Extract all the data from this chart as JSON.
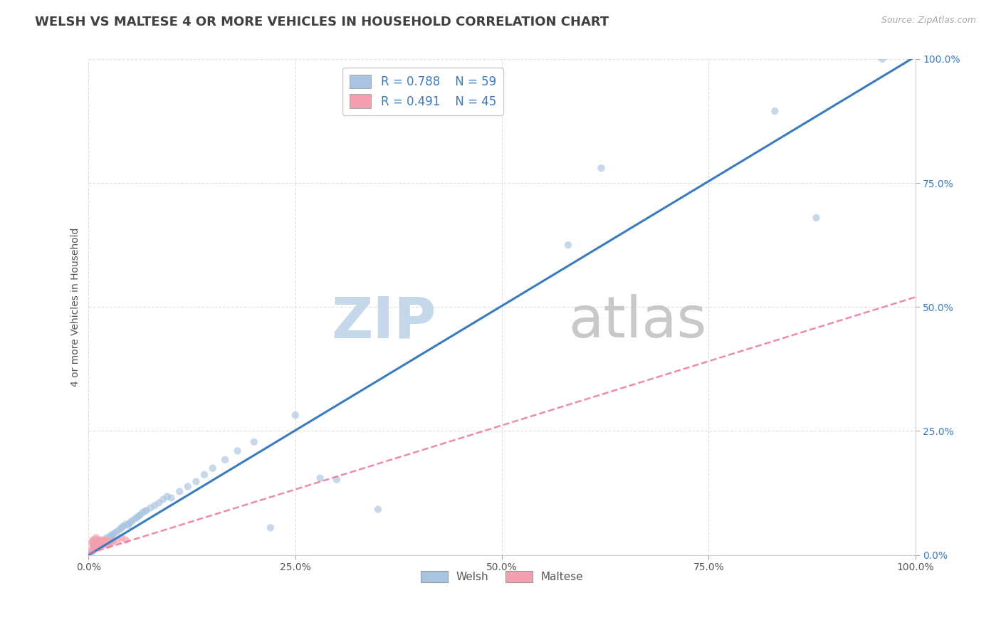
{
  "title": "WELSH VS MALTESE 4 OR MORE VEHICLES IN HOUSEHOLD CORRELATION CHART",
  "source_text": "Source: ZipAtlas.com",
  "ylabel": "4 or more Vehicles in Household",
  "legend_welsh_r": "R = 0.788",
  "legend_welsh_n": "N = 59",
  "legend_maltese_r": "R = 0.491",
  "legend_maltese_n": "N = 45",
  "welsh_color": "#a8c4e0",
  "maltese_color": "#f4a0b0",
  "welsh_line_color": "#3a7bbf",
  "maltese_line_color": "#e87090",
  "background_color": "#ffffff",
  "grid_color": "#e0e0e0",
  "welsh_scatter": [
    [
      0.003,
      0.005
    ],
    [
      0.005,
      0.008
    ],
    [
      0.006,
      0.01
    ],
    [
      0.007,
      0.012
    ],
    [
      0.008,
      0.015
    ],
    [
      0.009,
      0.018
    ],
    [
      0.01,
      0.015
    ],
    [
      0.011,
      0.02
    ],
    [
      0.012,
      0.018
    ],
    [
      0.013,
      0.022
    ],
    [
      0.015,
      0.025
    ],
    [
      0.016,
      0.022
    ],
    [
      0.018,
      0.03
    ],
    [
      0.02,
      0.028
    ],
    [
      0.022,
      0.035
    ],
    [
      0.025,
      0.035
    ],
    [
      0.027,
      0.04
    ],
    [
      0.028,
      0.038
    ],
    [
      0.03,
      0.042
    ],
    [
      0.032,
      0.045
    ],
    [
      0.035,
      0.048
    ],
    [
      0.038,
      0.052
    ],
    [
      0.04,
      0.055
    ],
    [
      0.042,
      0.058
    ],
    [
      0.045,
      0.062
    ],
    [
      0.048,
      0.06
    ],
    [
      0.05,
      0.065
    ],
    [
      0.052,
      0.068
    ],
    [
      0.055,
      0.072
    ],
    [
      0.058,
      0.075
    ],
    [
      0.06,
      0.078
    ],
    [
      0.062,
      0.08
    ],
    [
      0.065,
      0.085
    ],
    [
      0.068,
      0.088
    ],
    [
      0.07,
      0.09
    ],
    [
      0.075,
      0.095
    ],
    [
      0.08,
      0.1
    ],
    [
      0.085,
      0.105
    ],
    [
      0.09,
      0.112
    ],
    [
      0.095,
      0.118
    ],
    [
      0.1,
      0.115
    ],
    [
      0.11,
      0.128
    ],
    [
      0.12,
      0.138
    ],
    [
      0.13,
      0.148
    ],
    [
      0.14,
      0.162
    ],
    [
      0.15,
      0.175
    ],
    [
      0.165,
      0.192
    ],
    [
      0.18,
      0.21
    ],
    [
      0.2,
      0.228
    ],
    [
      0.22,
      0.055
    ],
    [
      0.25,
      0.282
    ],
    [
      0.3,
      0.152
    ],
    [
      0.35,
      0.092
    ],
    [
      0.58,
      0.625
    ],
    [
      0.62,
      0.78
    ],
    [
      0.83,
      0.895
    ],
    [
      0.88,
      0.68
    ],
    [
      0.96,
      1.0
    ],
    [
      0.28,
      0.155
    ]
  ],
  "maltese_scatter": [
    [
      0.003,
      0.01
    ],
    [
      0.004,
      0.025
    ],
    [
      0.005,
      0.03
    ],
    [
      0.005,
      0.02
    ],
    [
      0.006,
      0.025
    ],
    [
      0.006,
      0.018
    ],
    [
      0.007,
      0.025
    ],
    [
      0.007,
      0.03
    ],
    [
      0.007,
      0.015
    ],
    [
      0.008,
      0.025
    ],
    [
      0.008,
      0.018
    ],
    [
      0.008,
      0.03
    ],
    [
      0.009,
      0.022
    ],
    [
      0.009,
      0.035
    ],
    [
      0.01,
      0.028
    ],
    [
      0.01,
      0.02
    ],
    [
      0.01,
      0.015
    ],
    [
      0.011,
      0.025
    ],
    [
      0.011,
      0.03
    ],
    [
      0.012,
      0.022
    ],
    [
      0.012,
      0.018
    ],
    [
      0.013,
      0.025
    ],
    [
      0.013,
      0.03
    ],
    [
      0.014,
      0.022
    ],
    [
      0.014,
      0.028
    ],
    [
      0.015,
      0.025
    ],
    [
      0.015,
      0.02
    ],
    [
      0.016,
      0.025
    ],
    [
      0.016,
      0.03
    ],
    [
      0.017,
      0.025
    ],
    [
      0.018,
      0.022
    ],
    [
      0.018,
      0.028
    ],
    [
      0.019,
      0.025
    ],
    [
      0.02,
      0.022
    ],
    [
      0.02,
      0.03
    ],
    [
      0.021,
      0.025
    ],
    [
      0.022,
      0.028
    ],
    [
      0.023,
      0.02
    ],
    [
      0.025,
      0.025
    ],
    [
      0.026,
      0.028
    ],
    [
      0.028,
      0.025
    ],
    [
      0.03,
      0.028
    ],
    [
      0.035,
      0.03
    ],
    [
      0.04,
      0.035
    ],
    [
      0.045,
      0.03
    ]
  ],
  "welsh_line": [
    0.0,
    0.0,
    1.0,
    1.005
  ],
  "maltese_line": [
    0.0,
    0.003,
    1.0,
    0.52
  ],
  "xlim": [
    0,
    1.0
  ],
  "ylim": [
    0,
    1.0
  ],
  "xticks": [
    0.0,
    0.25,
    0.5,
    0.75,
    1.0
  ],
  "yticks": [
    0.0,
    0.25,
    0.5,
    0.75,
    1.0
  ],
  "xtick_labels": [
    "0.0%",
    "25.0%",
    "50.0%",
    "75.0%",
    "100.0%"
  ],
  "ytick_labels": [
    "0.0%",
    "25.0%",
    "50.0%",
    "75.0%",
    "100.0%"
  ],
  "title_fontsize": 13,
  "axis_label_fontsize": 10,
  "tick_fontsize": 10,
  "marker_size": 55,
  "marker_alpha": 0.65,
  "watermark_zip_color": "#c5d8ea",
  "watermark_atlas_color": "#c8c8c8"
}
